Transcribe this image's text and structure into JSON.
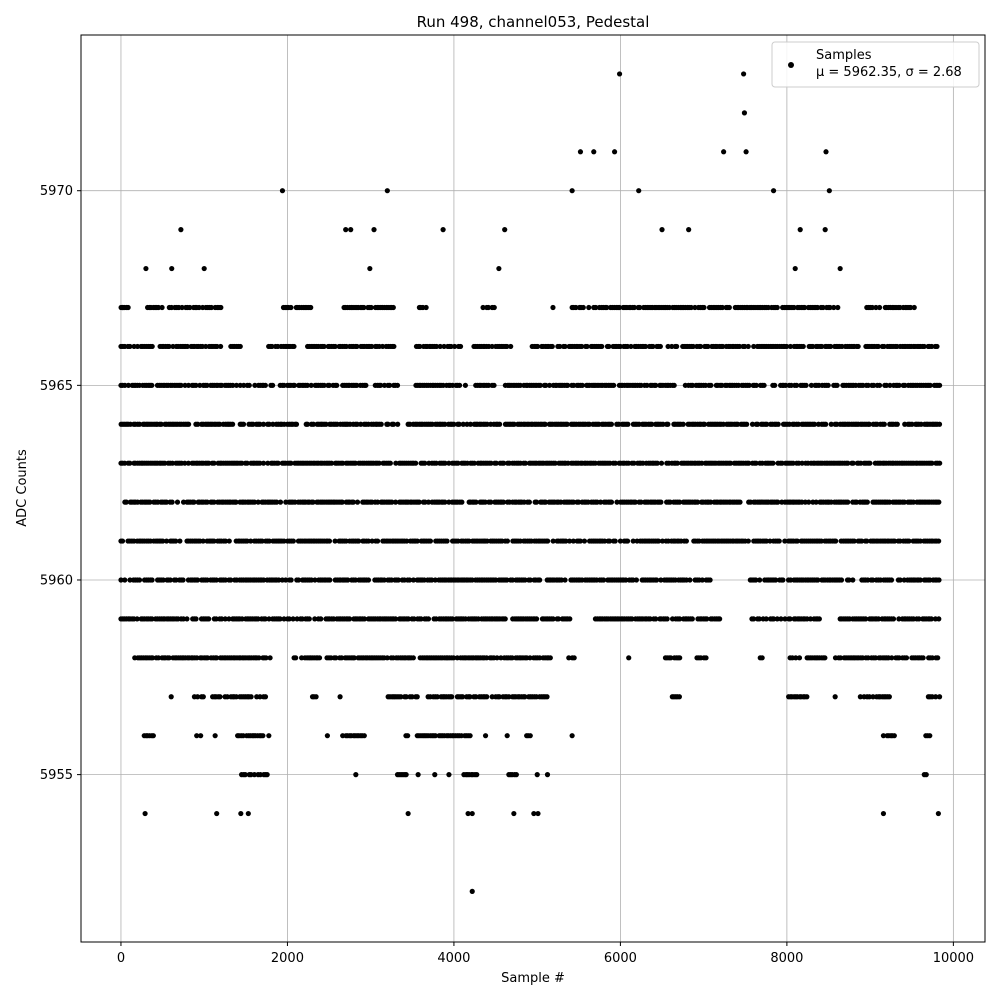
{
  "chart_data": {
    "type": "scatter",
    "title": "Run 498, channel053, Pedestal",
    "xlabel": "Sample #",
    "ylabel": "ADC Counts",
    "xlim": [
      -480,
      10380
    ],
    "ylim": [
      5950.7,
      5974.0
    ],
    "xticks": [
      0,
      2000,
      4000,
      6000,
      8000,
      10000
    ],
    "yticks": [
      5955,
      5960,
      5965,
      5970
    ],
    "grid": true,
    "legend_position": "top-right",
    "series": [
      {
        "name": "Samples",
        "marker": "dot",
        "color": "#000000",
        "n_points": 10000,
        "mean": 5962.35,
        "std": 2.68,
        "x_range": [
          0,
          9840
        ],
        "points": [
          [
            20,
            5967
          ],
          [
            290,
            5954
          ],
          [
            300,
            5968
          ],
          [
            610,
            5968
          ],
          [
            720,
            5969
          ],
          [
            1000,
            5968
          ],
          [
            1150,
            5954
          ],
          [
            1440,
            5954
          ],
          [
            1530,
            5954
          ],
          [
            1940,
            5970
          ],
          [
            2700,
            5969
          ],
          [
            2760,
            5969
          ],
          [
            2990,
            5968
          ],
          [
            3040,
            5969
          ],
          [
            3200,
            5970
          ],
          [
            3450,
            5954
          ],
          [
            3870,
            5969
          ],
          [
            4170,
            5954
          ],
          [
            4220,
            5954
          ],
          [
            4220,
            5952
          ],
          [
            4540,
            5968
          ],
          [
            4610,
            5969
          ],
          [
            4720,
            5954
          ],
          [
            4960,
            5954
          ],
          [
            5010,
            5954
          ],
          [
            5420,
            5970
          ],
          [
            5420,
            5956
          ],
          [
            5520,
            5971
          ],
          [
            5680,
            5971
          ],
          [
            5930,
            5971
          ],
          [
            5990,
            5973
          ],
          [
            6220,
            5970
          ],
          [
            6500,
            5969
          ],
          [
            6820,
            5969
          ],
          [
            7240,
            5971
          ],
          [
            7480,
            5973
          ],
          [
            7490,
            5972
          ],
          [
            7510,
            5971
          ],
          [
            7840,
            5970
          ],
          [
            8160,
            5969
          ],
          [
            8460,
            5969
          ],
          [
            8470,
            5971
          ],
          [
            8510,
            5970
          ],
          [
            9160,
            5954
          ],
          [
            9820,
            5954
          ],
          [
            8100,
            5968
          ],
          [
            8640,
            5968
          ]
        ],
        "level_spans": [
          {
            "y": 5967,
            "segments": [
              [
                0,
                120
              ],
              [
                320,
                1200
              ],
              [
                1950,
                2300
              ],
              [
                2680,
                3300
              ],
              [
                3560,
                3680
              ],
              [
                4350,
                4500
              ],
              [
                5190,
                5200
              ],
              [
                5420,
                8640
              ],
              [
                8960,
                9540
              ]
            ]
          },
          {
            "y": 5966,
            "segments": [
              [
                0,
                380
              ],
              [
                470,
                1200
              ],
              [
                1320,
                1460
              ],
              [
                1750,
                2100
              ],
              [
                2200,
                3320
              ],
              [
                3550,
                4080
              ],
              [
                4240,
                4700
              ],
              [
                4920,
                9840
              ]
            ]
          },
          {
            "y": 5965,
            "segments": [
              [
                0,
                1960
              ],
              [
                2000,
                3340
              ],
              [
                3540,
                4150
              ],
              [
                4240,
                4500
              ],
              [
                4600,
                9840
              ]
            ]
          },
          {
            "y": 5964,
            "segments": [
              [
                0,
                3340
              ],
              [
                3450,
                9840
              ]
            ]
          },
          {
            "y": 5963,
            "segments": [
              [
                0,
                9840
              ]
            ]
          },
          {
            "y": 5962,
            "segments": [
              [
                0,
                7450
              ],
              [
                7540,
                9840
              ]
            ]
          },
          {
            "y": 5961,
            "segments": [
              [
                0,
                5980
              ],
              [
                6000,
                7560
              ],
              [
                7600,
                9840
              ]
            ]
          },
          {
            "y": 5960,
            "segments": [
              [
                0,
                3000
              ],
              [
                3050,
                7080
              ],
              [
                7560,
                9840
              ]
            ]
          },
          {
            "y": 5959,
            "segments": [
              [
                0,
                5400
              ],
              [
                5700,
                7200
              ],
              [
                7580,
                8400
              ],
              [
                8640,
                9840
              ]
            ]
          },
          {
            "y": 5958,
            "segments": [
              [
                140,
                1800
              ],
              [
                2080,
                5200
              ],
              [
                5380,
                5460
              ],
              [
                6100,
                6110
              ],
              [
                6540,
                6720
              ],
              [
                6920,
                7030
              ],
              [
                7680,
                7780
              ],
              [
                8020,
                8460
              ],
              [
                8580,
                9840
              ]
            ]
          },
          {
            "y": 5957,
            "segments": [
              [
                190,
                210
              ],
              [
                600,
                610
              ],
              [
                880,
                1000
              ],
              [
                1100,
                1770
              ],
              [
                2080,
                2090
              ],
              [
                2300,
                2360
              ],
              [
                2610,
                2650
              ],
              [
                3210,
                3600
              ],
              [
                3690,
                5130
              ],
              [
                6620,
                6720
              ],
              [
                8020,
                8240
              ],
              [
                8580,
                8590
              ],
              [
                8880,
                9240
              ],
              [
                9700,
                9840
              ]
            ]
          },
          {
            "y": 5956,
            "segments": [
              [
                150,
                160
              ],
              [
                280,
                420
              ],
              [
                910,
                970
              ],
              [
                1110,
                1150
              ],
              [
                1400,
                1780
              ],
              [
                2480,
                2500
              ],
              [
                2660,
                2940
              ],
              [
                3420,
                3460
              ],
              [
                3560,
                4000
              ],
              [
                4000,
                4100
              ],
              [
                4130,
                4230
              ],
              [
                4380,
                4390
              ],
              [
                4640,
                4700
              ],
              [
                4870,
                4930
              ],
              [
                9160,
                9300
              ],
              [
                9650,
                9720
              ]
            ]
          },
          {
            "y": 5955,
            "segments": [
              [
                1430,
                1800
              ],
              [
                2080,
                2090
              ],
              [
                2240,
                2250
              ],
              [
                2820,
                2830
              ],
              [
                3320,
                3450
              ],
              [
                3570,
                3580
              ],
              [
                3770,
                3780
              ],
              [
                3940,
                3950
              ],
              [
                4120,
                4300
              ],
              [
                4660,
                4760
              ],
              [
                5000,
                5010
              ],
              [
                5120,
                5130
              ],
              [
                9650,
                9700
              ]
            ]
          }
        ]
      }
    ]
  },
  "legend": {
    "series_label": "Samples",
    "stats_label": "μ = 5962.35, σ = 2.68"
  }
}
